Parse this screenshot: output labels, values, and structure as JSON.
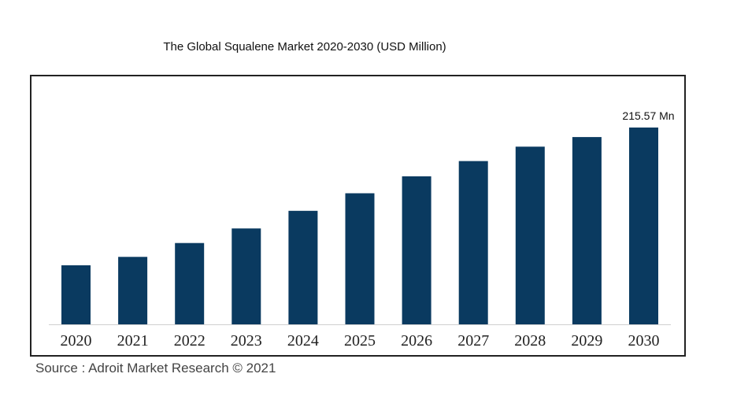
{
  "chart_data": {
    "type": "bar",
    "title": "The Global  Squalene Market 2020-2030 (USD Million)",
    "categories": [
      "2020",
      "2021",
      "2022",
      "2023",
      "2024",
      "2025",
      "2026",
      "2027",
      "2028",
      "2029",
      "2030"
    ],
    "values": [
      64.7,
      73.9,
      89.1,
      105.0,
      124.3,
      143.6,
      162.1,
      178.8,
      194.6,
      205.1,
      215.57
    ],
    "value_labels": [
      "",
      "",
      "",
      "",
      "",
      "",
      "",
      "",
      "",
      "",
      "215.57 Mn"
    ],
    "ylim": [
      0,
      215.57
    ],
    "bar_color": "#0a3a60",
    "grid": false,
    "legend": "none"
  },
  "source": "Source : Adroit Market Research © 2021"
}
